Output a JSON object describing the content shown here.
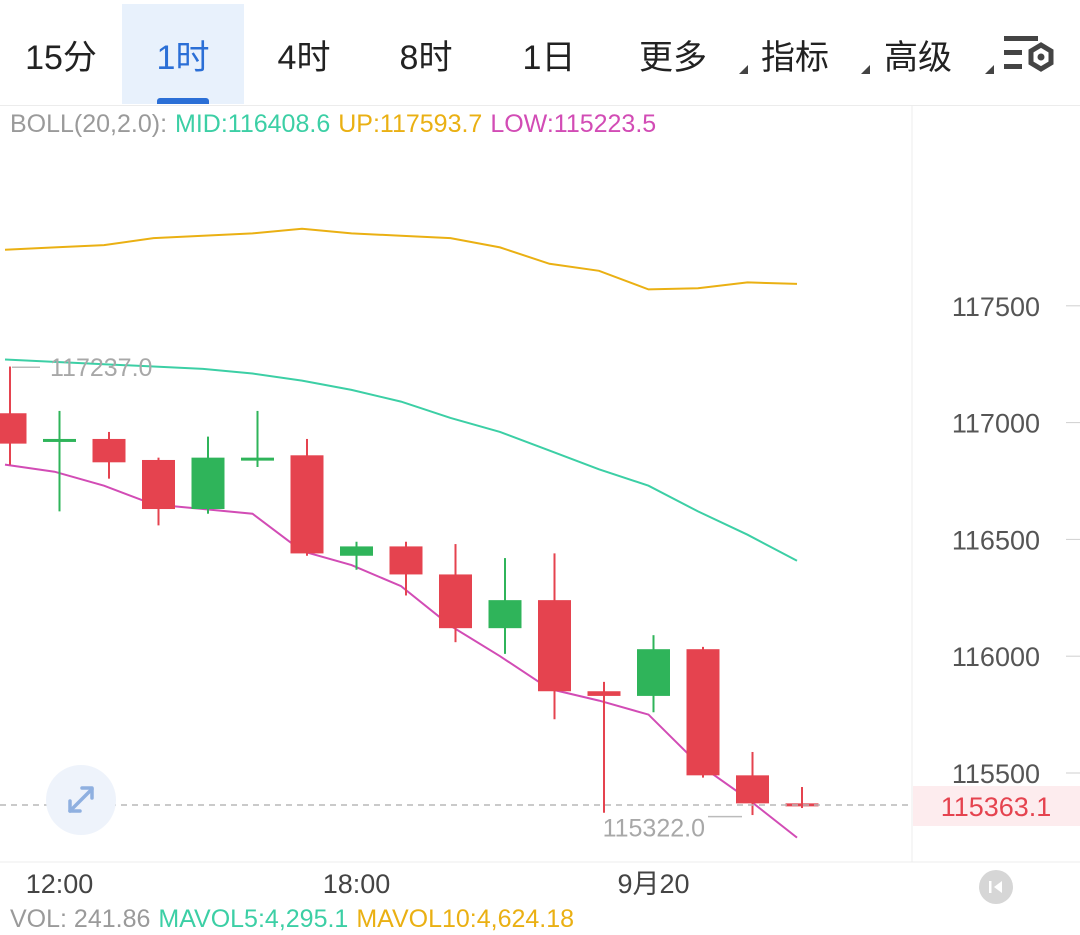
{
  "tabs": [
    {
      "label": "15分",
      "active": false
    },
    {
      "label": "1时",
      "active": true
    },
    {
      "label": "4时",
      "active": false
    },
    {
      "label": "8时",
      "active": false
    },
    {
      "label": "1日",
      "active": false
    },
    {
      "label": "更多",
      "active": false,
      "dropdown": true
    },
    {
      "label": "指标",
      "active": false,
      "dropdown": true
    },
    {
      "label": "高级",
      "active": false,
      "dropdown": true
    }
  ],
  "settings_icon": "chart-settings-icon",
  "boll_legend": {
    "name": "BOLL(20,2.0):",
    "mid": "MID:116408.6",
    "up": "UP:117593.7",
    "low": "LOW:115223.5"
  },
  "vol_legend": {
    "vol": "VOL: 241.86",
    "mavol5": "MAVOL5:4,295.1",
    "mavol10": "MAVOL10:4,624.18"
  },
  "colors": {
    "up": "#2fb45a",
    "down": "#e5434f",
    "mid": "#3ccfa5",
    "upper": "#eab013",
    "lower": "#d24cb5",
    "accent": "#2b6fd6",
    "legend_name": "#9a9a9a"
  },
  "icons": {
    "expand": "expand-arrows-icon",
    "back_to_latest": "back-to-latest-icon"
  },
  "chart_data": {
    "type": "candlestick",
    "interval": "1时",
    "y_ticks": [
      115500,
      116000,
      116500,
      117000,
      117500
    ],
    "x_ticks": [
      {
        "label": "12:00",
        "index": 1
      },
      {
        "label": "18:00",
        "index": 7
      },
      {
        "label": "9月20",
        "index": 13
      }
    ],
    "current_price": "115363.1",
    "max_label": "117237.0",
    "min_label": "115322.0",
    "candles": [
      {
        "o": 117040,
        "h": 117240,
        "l": 116820,
        "c": 116910
      },
      {
        "o": 116920,
        "h": 117050,
        "l": 116620,
        "c": 116930
      },
      {
        "o": 116930,
        "h": 116960,
        "l": 116760,
        "c": 116830
      },
      {
        "o": 116840,
        "h": 116850,
        "l": 116560,
        "c": 116630
      },
      {
        "o": 116630,
        "h": 116940,
        "l": 116610,
        "c": 116850
      },
      {
        "o": 116840,
        "h": 117050,
        "l": 116810,
        "c": 116850
      },
      {
        "o": 116860,
        "h": 116930,
        "l": 116430,
        "c": 116440
      },
      {
        "o": 116430,
        "h": 116490,
        "l": 116370,
        "c": 116470
      },
      {
        "o": 116470,
        "h": 116490,
        "l": 116260,
        "c": 116350
      },
      {
        "o": 116350,
        "h": 116480,
        "l": 116060,
        "c": 116120
      },
      {
        "o": 116120,
        "h": 116420,
        "l": 116010,
        "c": 116240
      },
      {
        "o": 116240,
        "h": 116440,
        "l": 115730,
        "c": 115850
      },
      {
        "o": 115850,
        "h": 115890,
        "l": 115330,
        "c": 115830
      },
      {
        "o": 115830,
        "h": 116090,
        "l": 115760,
        "c": 116030
      },
      {
        "o": 116030,
        "h": 116040,
        "l": 115480,
        "c": 115490
      },
      {
        "o": 115490,
        "h": 115590,
        "l": 115320,
        "c": 115370
      },
      {
        "o": 115370,
        "h": 115440,
        "l": 115350,
        "c": 115363
      }
    ],
    "series": [
      {
        "name": "UP",
        "values": [
          117740,
          117750,
          117760,
          117790,
          117800,
          117810,
          117830,
          117810,
          117800,
          117790,
          117750,
          117680,
          117650,
          117570,
          117575,
          117600,
          117593.7
        ]
      },
      {
        "name": "MID",
        "values": [
          117270,
          117260,
          117250,
          117240,
          117230,
          117210,
          117180,
          117140,
          117090,
          117020,
          116960,
          116880,
          116800,
          116730,
          116620,
          116520,
          116408.6
        ]
      },
      {
        "name": "LOW",
        "values": [
          116820,
          116790,
          116730,
          116650,
          116630,
          116610,
          116450,
          116390,
          116300,
          116130,
          116000,
          115860,
          115810,
          115750,
          115540,
          115390,
          115223.5
        ]
      }
    ]
  }
}
